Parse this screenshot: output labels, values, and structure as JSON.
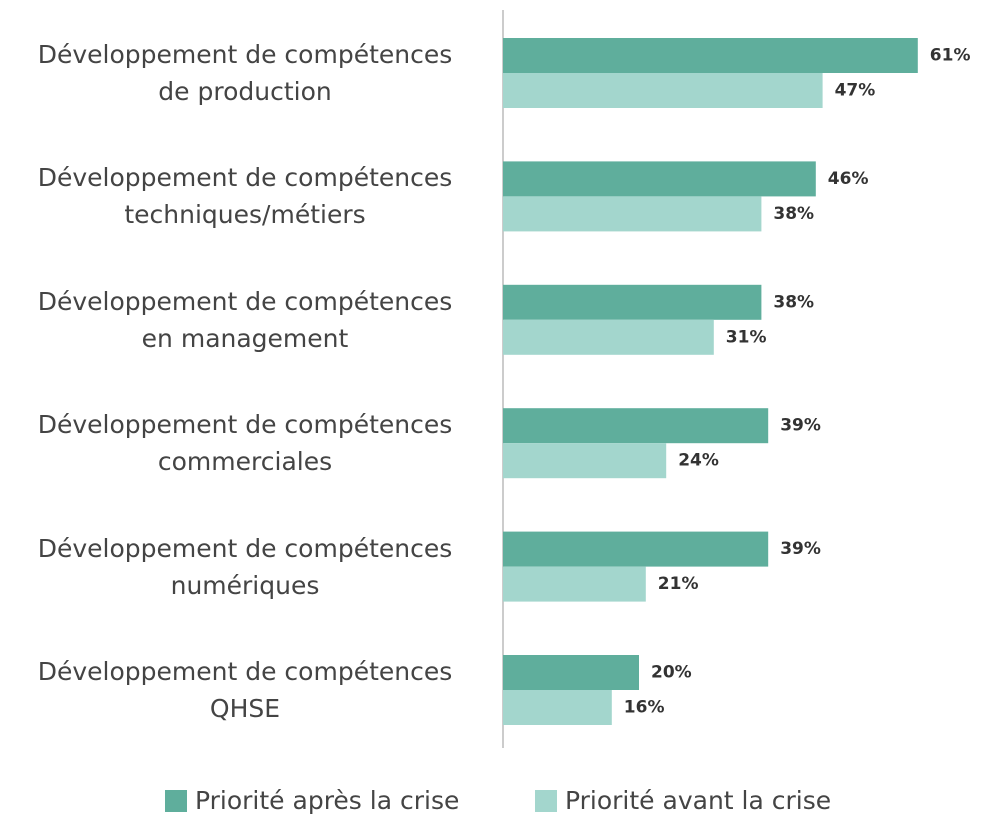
{
  "chart_data": {
    "type": "bar",
    "orientation": "horizontal",
    "categories": [
      "Développement de compétences\nde production",
      "Développement de compétences\ntechniques/métiers",
      "Développement de compétences\nen management",
      "Développement de compétences\ncommerciales",
      "Développement de compétences\nnumériques",
      "Développement de compétences\nQHSE"
    ],
    "series": [
      {
        "name": "Priorité après la crise",
        "color": "#5fae9c",
        "values": [
          61,
          46,
          38,
          39,
          39,
          20
        ],
        "value_labels": [
          "61%",
          "46%",
          "38%",
          "39%",
          "39%",
          "20%"
        ]
      },
      {
        "name": "Priorité avant la crise",
        "color": "#a3d6cd",
        "values": [
          47,
          38,
          31,
          24,
          21,
          16
        ],
        "value_labels": [
          "47%",
          "38%",
          "31%",
          "24%",
          "21%",
          "16%"
        ]
      }
    ],
    "legend": "bottom"
  }
}
